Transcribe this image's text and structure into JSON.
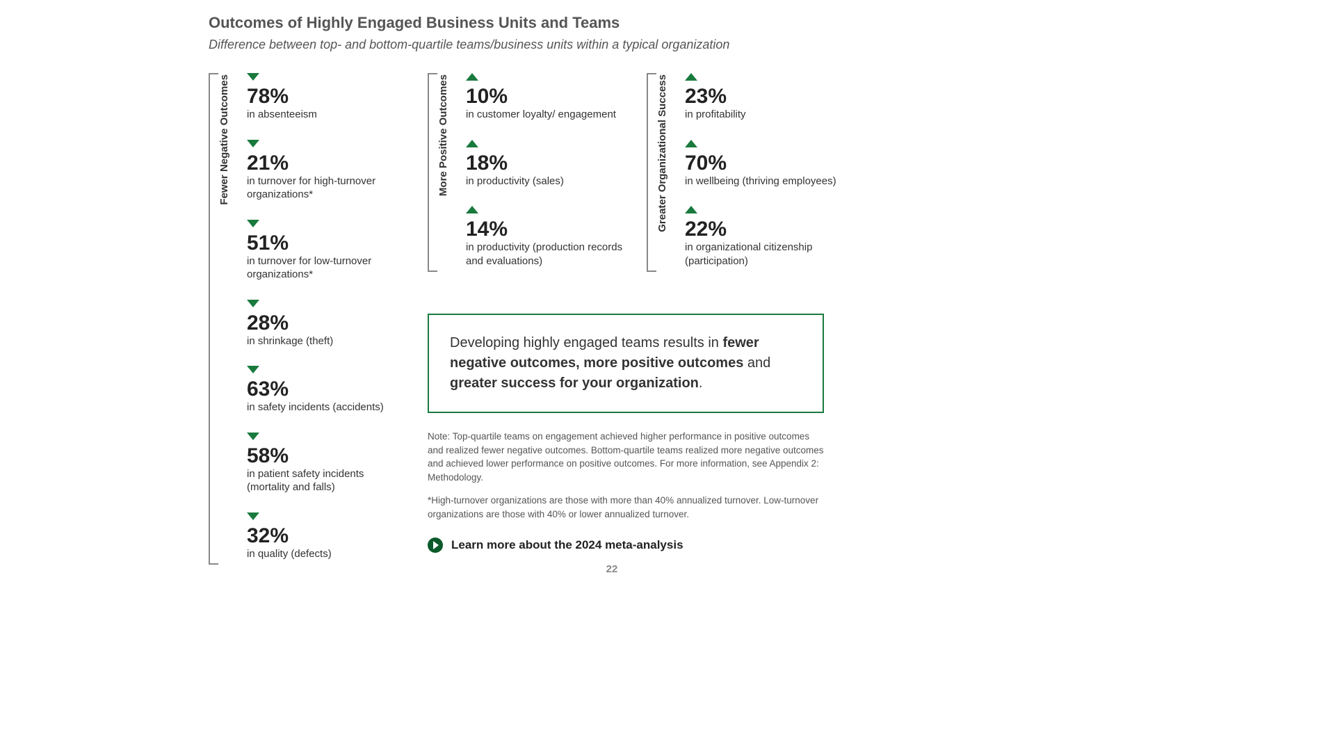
{
  "title": "Outcomes of Highly Engaged Business Units and Teams",
  "subtitle": "Difference between top- and bottom-quartile teams/business units within a typical organization",
  "accent_color": "#1a7a3e",
  "text_color": "#333333",
  "muted_color": "#555555",
  "page_number": "22",
  "columns": [
    {
      "label": "Fewer Negative Outcomes",
      "direction": "down",
      "items": [
        {
          "pct": "78%",
          "desc": "in absenteeism"
        },
        {
          "pct": "21%",
          "desc": "in turnover for high-turnover organizations*"
        },
        {
          "pct": "51%",
          "desc": "in turnover for low-turnover organizations*"
        },
        {
          "pct": "28%",
          "desc": "in shrinkage (theft)"
        },
        {
          "pct": "63%",
          "desc": "in safety incidents (accidents)"
        },
        {
          "pct": "58%",
          "desc": "in patient safety incidents (mortality and falls)"
        },
        {
          "pct": "32%",
          "desc": "in quality (defects)"
        }
      ]
    },
    {
      "label": "More Positive Outcomes",
      "direction": "up",
      "items": [
        {
          "pct": "10%",
          "desc": "in customer loyalty/ engagement"
        },
        {
          "pct": "18%",
          "desc": "in productivity (sales)"
        },
        {
          "pct": "14%",
          "desc": "in productivity (production records and evaluations)"
        }
      ]
    },
    {
      "label": "Greater Organizational Success",
      "direction": "up",
      "items": [
        {
          "pct": "23%",
          "desc": "in profitability"
        },
        {
          "pct": "70%",
          "desc": "in wellbeing (thriving employees)"
        },
        {
          "pct": "22%",
          "desc": "in organizational citizenship (participation)"
        }
      ]
    }
  ],
  "callout": {
    "prefix": "Developing highly engaged teams results in ",
    "b1": "fewer negative outcomes, more positive outcomes",
    "mid": " and ",
    "b2": "greater success for your organization",
    "suffix": "."
  },
  "note1": "Note: Top-quartile teams on engagement achieved higher performance in positive outcomes and realized fewer negative outcomes. Bottom-quartile teams realized more negative outcomes and achieved lower performance on positive outcomes. For more information, see Appendix 2: Methodology.",
  "note2": "*High-turnover organizations are those with more than 40% annualized turnover. Low-turnover organizations are those with 40% or lower annualized turnover.",
  "learn_more": "Learn more about the 2024 meta-analysis"
}
